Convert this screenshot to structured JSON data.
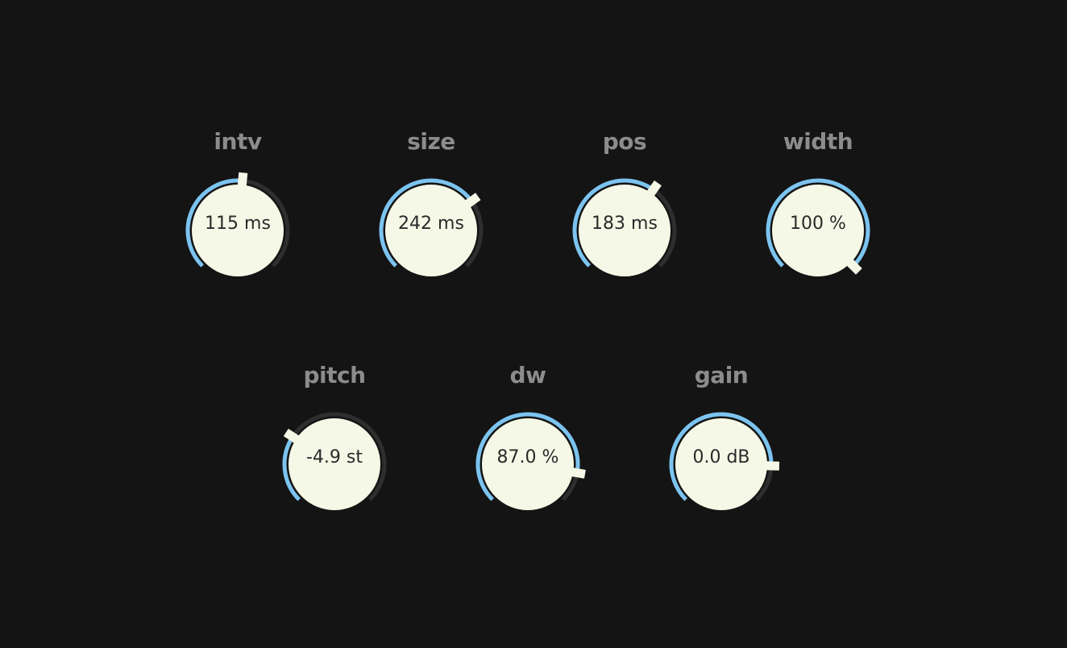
{
  "knobs": [
    {
      "id": "intv",
      "label": "intv",
      "value_text": "115 ms",
      "position": 0.52
    },
    {
      "id": "size",
      "label": "size",
      "value_text": "242 ms",
      "position": 0.7
    },
    {
      "id": "pos",
      "label": "pos",
      "value_text": "183 ms",
      "position": 0.63
    },
    {
      "id": "width",
      "label": "width",
      "value_text": "100 %",
      "position": 1.0
    },
    {
      "id": "pitch",
      "label": "pitch",
      "value_text": "-4.9 st",
      "position": 0.29
    },
    {
      "id": "dw",
      "label": "dw",
      "value_text": "87.0 %",
      "position": 0.87
    },
    {
      "id": "gain",
      "label": "gain",
      "value_text": "0.0 dB",
      "position": 0.84
    }
  ],
  "colors": {
    "background": "#141414",
    "track": "#2e2e2e",
    "fill": "#7cc4f0",
    "knob_face": "#f5f8e6",
    "pointer": "#f5f8e6",
    "label": "#8c8c8c",
    "value_text": "#2a2a2a"
  }
}
